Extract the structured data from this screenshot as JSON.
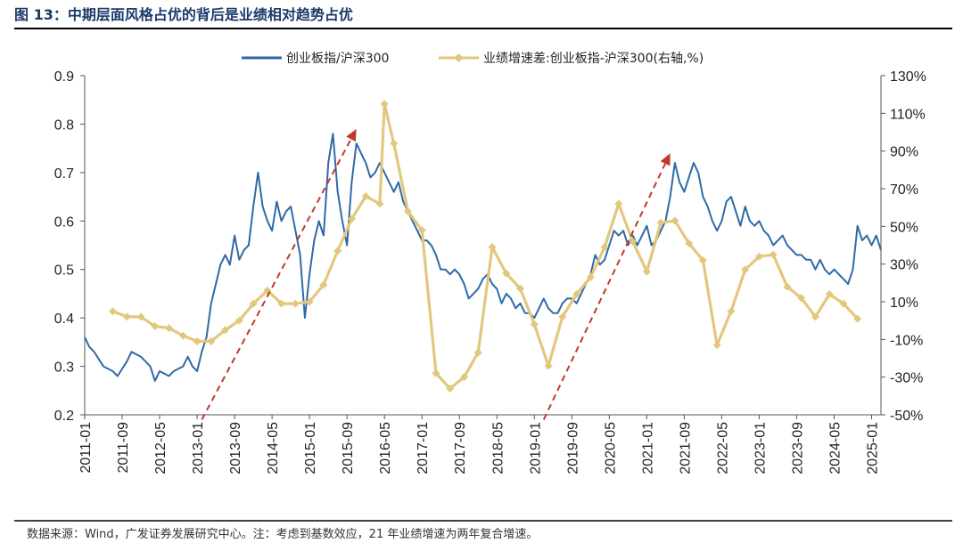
{
  "figure": {
    "title": "图 13：中期层面风格占优的背后是业绩相对趋势占优",
    "source": "数据来源：Wind，广发证券发展研究中心。注：考虑到基数效应，21 年业绩增速为两年复合增速。"
  },
  "chart_data": {
    "type": "line",
    "x_type": "date",
    "x_start": "2011-01",
    "x_end": "2025-03",
    "x_ticks": [
      "2011-01",
      "2011-09",
      "2012-05",
      "2013-01",
      "2013-09",
      "2014-05",
      "2015-01",
      "2015-09",
      "2016-05",
      "2017-01",
      "2017-09",
      "2018-05",
      "2019-01",
      "2019-09",
      "2020-05",
      "2021-01",
      "2021-09",
      "2022-05",
      "2023-01",
      "2023-09",
      "2024-05",
      "2025-01"
    ],
    "y_left": {
      "min": 0.2,
      "max": 0.9,
      "ticks": [
        "0.2",
        "0.3",
        "0.4",
        "0.5",
        "0.6",
        "0.7",
        "0.8",
        "0.9"
      ]
    },
    "y_right": {
      "min": -50,
      "max": 130,
      "ticks": [
        "-50%",
        "-30%",
        "-10%",
        "10%",
        "30%",
        "50%",
        "70%",
        "90%",
        "110%",
        "130%"
      ]
    },
    "legend": {
      "position": "top"
    },
    "series": [
      {
        "name": "创业板指/沪深300",
        "axis": "left",
        "color": "#2f6aa6",
        "style": "solid",
        "points": [
          [
            "2011-01",
            0.36
          ],
          [
            "2011-02",
            0.34
          ],
          [
            "2011-03",
            0.33
          ],
          [
            "2011-05",
            0.3
          ],
          [
            "2011-07",
            0.29
          ],
          [
            "2011-08",
            0.28
          ],
          [
            "2011-10",
            0.31
          ],
          [
            "2011-11",
            0.33
          ],
          [
            "2012-01",
            0.32
          ],
          [
            "2012-03",
            0.3
          ],
          [
            "2012-04",
            0.27
          ],
          [
            "2012-05",
            0.29
          ],
          [
            "2012-07",
            0.28
          ],
          [
            "2012-08",
            0.29
          ],
          [
            "2012-10",
            0.3
          ],
          [
            "2012-11",
            0.32
          ],
          [
            "2012-12",
            0.3
          ],
          [
            "2013-01",
            0.29
          ],
          [
            "2013-02",
            0.33
          ],
          [
            "2013-03",
            0.36
          ],
          [
            "2013-04",
            0.43
          ],
          [
            "2013-05",
            0.47
          ],
          [
            "2013-06",
            0.51
          ],
          [
            "2013-07",
            0.53
          ],
          [
            "2013-08",
            0.51
          ],
          [
            "2013-09",
            0.57
          ],
          [
            "2013-10",
            0.52
          ],
          [
            "2013-11",
            0.54
          ],
          [
            "2013-12",
            0.55
          ],
          [
            "2014-01",
            0.63
          ],
          [
            "2014-02",
            0.7
          ],
          [
            "2014-03",
            0.63
          ],
          [
            "2014-04",
            0.6
          ],
          [
            "2014-05",
            0.58
          ],
          [
            "2014-06",
            0.64
          ],
          [
            "2014-07",
            0.6
          ],
          [
            "2014-08",
            0.62
          ],
          [
            "2014-09",
            0.63
          ],
          [
            "2014-10",
            0.58
          ],
          [
            "2014-11",
            0.53
          ],
          [
            "2014-12",
            0.4
          ],
          [
            "2015-01",
            0.49
          ],
          [
            "2015-02",
            0.56
          ],
          [
            "2015-03",
            0.6
          ],
          [
            "2015-04",
            0.57
          ],
          [
            "2015-05",
            0.72
          ],
          [
            "2015-06",
            0.78
          ],
          [
            "2015-07",
            0.66
          ],
          [
            "2015-08",
            0.6
          ],
          [
            "2015-09",
            0.55
          ],
          [
            "2015-10",
            0.68
          ],
          [
            "2015-11",
            0.76
          ],
          [
            "2015-12",
            0.74
          ],
          [
            "2016-01",
            0.72
          ],
          [
            "2016-02",
            0.69
          ],
          [
            "2016-03",
            0.7
          ],
          [
            "2016-04",
            0.72
          ],
          [
            "2016-05",
            0.7
          ],
          [
            "2016-06",
            0.68
          ],
          [
            "2016-07",
            0.66
          ],
          [
            "2016-08",
            0.68
          ],
          [
            "2016-09",
            0.64
          ],
          [
            "2016-10",
            0.62
          ],
          [
            "2016-11",
            0.6
          ],
          [
            "2016-12",
            0.58
          ],
          [
            "2017-01",
            0.56
          ],
          [
            "2017-02",
            0.56
          ],
          [
            "2017-03",
            0.55
          ],
          [
            "2017-04",
            0.53
          ],
          [
            "2017-05",
            0.5
          ],
          [
            "2017-06",
            0.5
          ],
          [
            "2017-07",
            0.49
          ],
          [
            "2017-08",
            0.5
          ],
          [
            "2017-09",
            0.49
          ],
          [
            "2017-10",
            0.47
          ],
          [
            "2017-11",
            0.44
          ],
          [
            "2017-12",
            0.45
          ],
          [
            "2018-01",
            0.46
          ],
          [
            "2018-02",
            0.48
          ],
          [
            "2018-03",
            0.49
          ],
          [
            "2018-04",
            0.47
          ],
          [
            "2018-05",
            0.46
          ],
          [
            "2018-06",
            0.43
          ],
          [
            "2018-07",
            0.45
          ],
          [
            "2018-08",
            0.44
          ],
          [
            "2018-09",
            0.42
          ],
          [
            "2018-10",
            0.43
          ],
          [
            "2018-11",
            0.41
          ],
          [
            "2018-12",
            0.41
          ],
          [
            "2019-01",
            0.4
          ],
          [
            "2019-02",
            0.42
          ],
          [
            "2019-03",
            0.44
          ],
          [
            "2019-04",
            0.42
          ],
          [
            "2019-05",
            0.41
          ],
          [
            "2019-06",
            0.41
          ],
          [
            "2019-07",
            0.43
          ],
          [
            "2019-08",
            0.44
          ],
          [
            "2019-09",
            0.44
          ],
          [
            "2019-10",
            0.43
          ],
          [
            "2019-11",
            0.45
          ],
          [
            "2019-12",
            0.47
          ],
          [
            "2020-01",
            0.49
          ],
          [
            "2020-02",
            0.53
          ],
          [
            "2020-03",
            0.51
          ],
          [
            "2020-04",
            0.52
          ],
          [
            "2020-05",
            0.55
          ],
          [
            "2020-06",
            0.58
          ],
          [
            "2020-07",
            0.57
          ],
          [
            "2020-08",
            0.58
          ],
          [
            "2020-09",
            0.55
          ],
          [
            "2020-10",
            0.57
          ],
          [
            "2020-11",
            0.55
          ],
          [
            "2020-12",
            0.57
          ],
          [
            "2021-01",
            0.59
          ],
          [
            "2021-02",
            0.55
          ],
          [
            "2021-03",
            0.56
          ],
          [
            "2021-04",
            0.58
          ],
          [
            "2021-05",
            0.6
          ],
          [
            "2021-06",
            0.65
          ],
          [
            "2021-07",
            0.72
          ],
          [
            "2021-08",
            0.68
          ],
          [
            "2021-09",
            0.66
          ],
          [
            "2021-10",
            0.69
          ],
          [
            "2021-11",
            0.72
          ],
          [
            "2021-12",
            0.7
          ],
          [
            "2022-01",
            0.65
          ],
          [
            "2022-02",
            0.63
          ],
          [
            "2022-03",
            0.6
          ],
          [
            "2022-04",
            0.58
          ],
          [
            "2022-05",
            0.6
          ],
          [
            "2022-06",
            0.64
          ],
          [
            "2022-07",
            0.65
          ],
          [
            "2022-08",
            0.62
          ],
          [
            "2022-09",
            0.59
          ],
          [
            "2022-10",
            0.63
          ],
          [
            "2022-11",
            0.6
          ],
          [
            "2022-12",
            0.59
          ],
          [
            "2023-01",
            0.6
          ],
          [
            "2023-02",
            0.58
          ],
          [
            "2023-03",
            0.57
          ],
          [
            "2023-04",
            0.55
          ],
          [
            "2023-05",
            0.56
          ],
          [
            "2023-06",
            0.57
          ],
          [
            "2023-07",
            0.55
          ],
          [
            "2023-08",
            0.54
          ],
          [
            "2023-09",
            0.53
          ],
          [
            "2023-10",
            0.53
          ],
          [
            "2023-11",
            0.52
          ],
          [
            "2023-12",
            0.52
          ],
          [
            "2024-01",
            0.5
          ],
          [
            "2024-02",
            0.52
          ],
          [
            "2024-03",
            0.5
          ],
          [
            "2024-04",
            0.49
          ],
          [
            "2024-05",
            0.5
          ],
          [
            "2024-06",
            0.49
          ],
          [
            "2024-07",
            0.48
          ],
          [
            "2024-08",
            0.47
          ],
          [
            "2024-09",
            0.5
          ],
          [
            "2024-10",
            0.59
          ],
          [
            "2024-11",
            0.56
          ],
          [
            "2024-12",
            0.57
          ],
          [
            "2025-01",
            0.55
          ],
          [
            "2025-02",
            0.57
          ],
          [
            "2025-03",
            0.54
          ]
        ]
      },
      {
        "name": "业绩增速差:创业板指-沪深300(右轴,%)",
        "axis": "right",
        "color": "#e2c77d",
        "style": "solid",
        "marker": "diamond",
        "points": [
          [
            "2011-07",
            5
          ],
          [
            "2011-10",
            2
          ],
          [
            "2012-01",
            2
          ],
          [
            "2012-04",
            -3
          ],
          [
            "2012-07",
            -4
          ],
          [
            "2012-10",
            -8
          ],
          [
            "2013-01",
            -11
          ],
          [
            "2013-04",
            -11
          ],
          [
            "2013-07",
            -5
          ],
          [
            "2013-10",
            0
          ],
          [
            "2014-01",
            9
          ],
          [
            "2014-04",
            16
          ],
          [
            "2014-07",
            9
          ],
          [
            "2014-10",
            9
          ],
          [
            "2015-01",
            10
          ],
          [
            "2015-04",
            19
          ],
          [
            "2015-07",
            37
          ],
          [
            "2015-10",
            54
          ],
          [
            "2016-01",
            66
          ],
          [
            "2016-04",
            62
          ],
          [
            "2016-05",
            115
          ],
          [
            "2016-07",
            94
          ],
          [
            "2016-10",
            58
          ],
          [
            "2017-01",
            48
          ],
          [
            "2017-04",
            -28
          ],
          [
            "2017-07",
            -36
          ],
          [
            "2017-10",
            -30
          ],
          [
            "2018-01",
            -17
          ],
          [
            "2018-04",
            39
          ],
          [
            "2018-07",
            25
          ],
          [
            "2018-10",
            17
          ],
          [
            "2019-01",
            -2
          ],
          [
            "2019-04",
            -24
          ],
          [
            "2019-07",
            2
          ],
          [
            "2019-10",
            14
          ],
          [
            "2020-01",
            23
          ],
          [
            "2020-04",
            39
          ],
          [
            "2020-07",
            62
          ],
          [
            "2020-10",
            42
          ],
          [
            "2021-01",
            26
          ],
          [
            "2021-04",
            52
          ],
          [
            "2021-07",
            53
          ],
          [
            "2021-10",
            41
          ],
          [
            "2022-01",
            32
          ],
          [
            "2022-04",
            -13
          ],
          [
            "2022-07",
            5
          ],
          [
            "2022-10",
            27
          ],
          [
            "2023-01",
            34
          ],
          [
            "2023-04",
            35
          ],
          [
            "2023-07",
            18
          ],
          [
            "2023-10",
            12
          ],
          [
            "2024-01",
            2
          ],
          [
            "2024-04",
            14
          ],
          [
            "2024-07",
            9
          ],
          [
            "2024-10",
            1
          ]
        ]
      }
    ],
    "annotations": [
      {
        "type": "arrow",
        "style": "dashed",
        "color": "#c0392b",
        "from": [
          "2013-02",
          0.19
        ],
        "to": [
          "2015-11",
          0.79
        ]
      },
      {
        "type": "arrow",
        "style": "dashed",
        "color": "#c0392b",
        "from": [
          "2019-03",
          0.19
        ],
        "to": [
          "2021-06",
          0.74
        ]
      }
    ]
  }
}
